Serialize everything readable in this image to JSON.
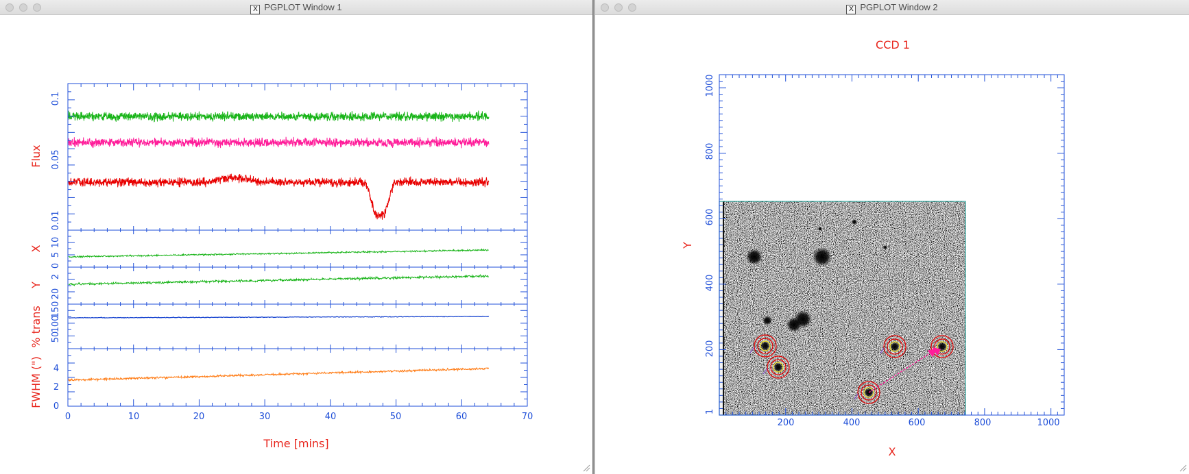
{
  "window1": {
    "title": "PGPLOT Window 1",
    "x_axis": {
      "label": "Time [mins]",
      "ticks": [
        "0",
        "10",
        "20",
        "30",
        "40",
        "50",
        "60",
        "70"
      ]
    },
    "panels": {
      "flux": {
        "ylabel": "Flux",
        "ticks": [
          "0.01",
          "0.05",
          "0.1"
        ]
      },
      "x": {
        "ylabel": "X",
        "ticks": [
          "0",
          "5",
          "10"
        ]
      },
      "y": {
        "ylabel": "Y",
        "ticks": [
          "20",
          "2"
        ]
      },
      "trans": {
        "ylabel": "% trans",
        "ticks": [
          "50",
          "100",
          "150"
        ]
      },
      "fwhm": {
        "ylabel": "FWHM (\")",
        "ticks": [
          "0",
          "2",
          "4"
        ]
      }
    },
    "colors": {
      "axis": "#1f4fd8",
      "label": "#e8261d",
      "green": "#18b418",
      "magenta": "#ff1d9a",
      "red": "#e80000",
      "blue": "#1a46d0",
      "orange": "#ff7a12"
    }
  },
  "window2": {
    "title": "PGPLOT Window 2",
    "plot_title": "CCD 1",
    "x_axis": {
      "label": "X",
      "ticks": [
        "200",
        "400",
        "600",
        "800",
        "1000"
      ]
    },
    "y_axis": {
      "label": "Y",
      "ticks": [
        "1",
        "200",
        "400",
        "600",
        "800",
        "1000"
      ]
    }
  }
}
